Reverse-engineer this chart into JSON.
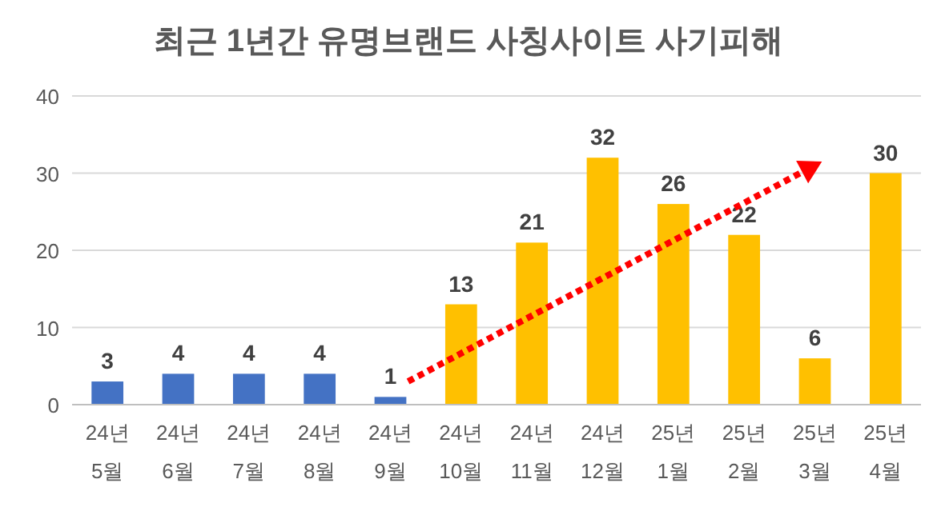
{
  "chart_data": {
    "type": "bar",
    "title": "최근 1년간 유명브랜드 사칭사이트 사기피해",
    "categories": [
      "24년\n5월",
      "24년\n6월",
      "24년\n7월",
      "24년\n8월",
      "24년\n9월",
      "24년\n10월",
      "24년\n11월",
      "24년\n12월",
      "25년\n1월",
      "25년\n2월",
      "25년\n3월",
      "25년\n4월"
    ],
    "values": [
      3,
      4,
      4,
      4,
      1,
      13,
      21,
      32,
      26,
      22,
      6,
      30
    ],
    "colors": [
      "#4472c4",
      "#4472c4",
      "#4472c4",
      "#4472c4",
      "#4472c4",
      "#ffc000",
      "#ffc000",
      "#ffc000",
      "#ffc000",
      "#ffc000",
      "#ffc000",
      "#ffc000"
    ],
    "ylim": [
      0,
      40
    ],
    "yticks": [
      0,
      10,
      20,
      30,
      40
    ],
    "grid": "y",
    "data_labels": true
  }
}
